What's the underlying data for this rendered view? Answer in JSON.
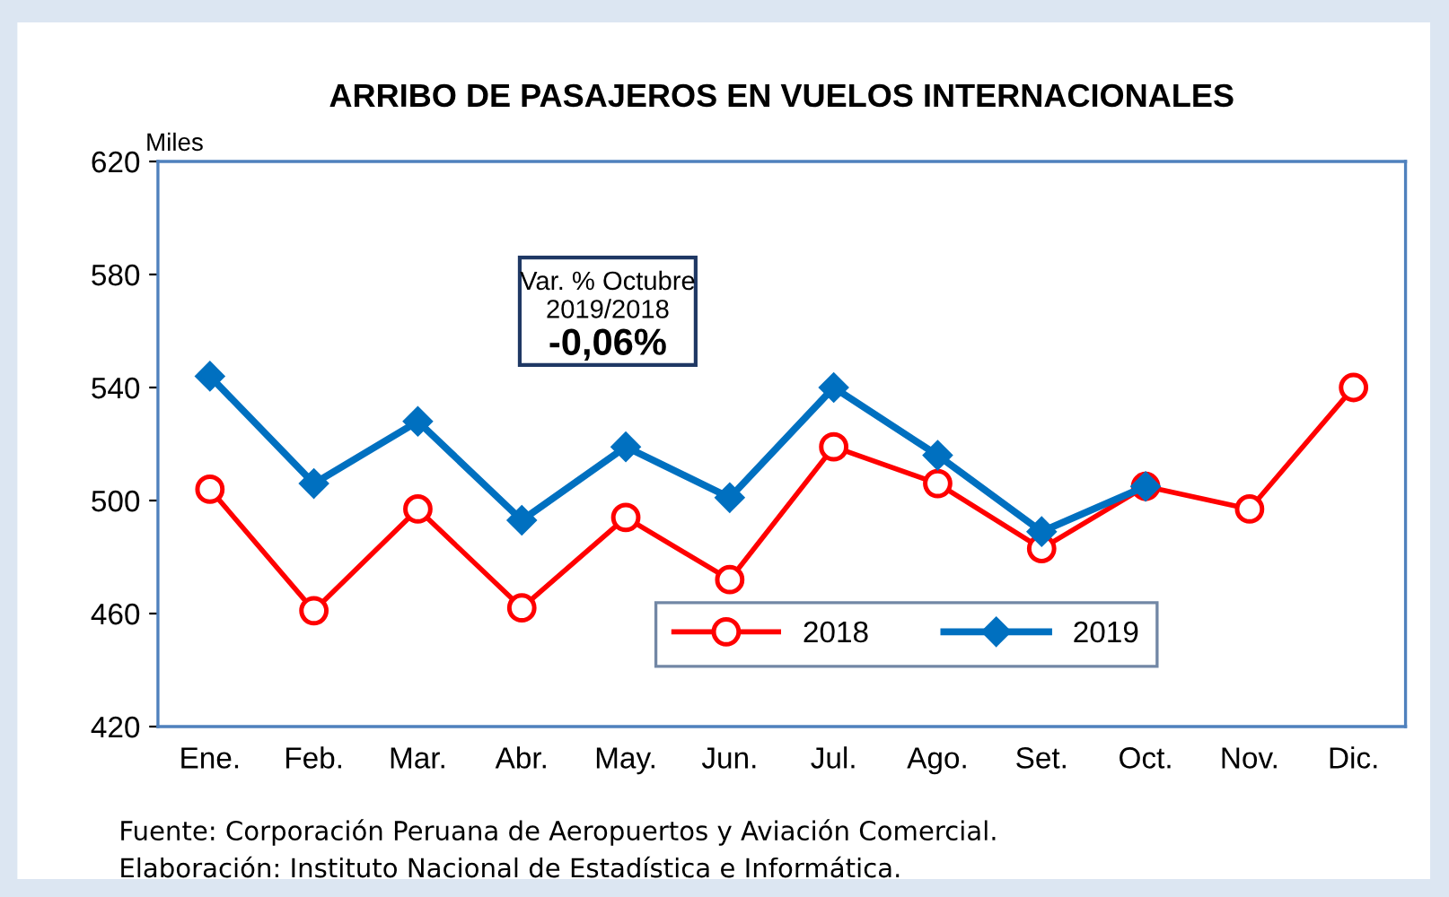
{
  "chart_data": {
    "type": "line",
    "title": "ARRIBO DE PASAJEROS EN VUELOS INTERNACIONALES",
    "ylabel": "Miles",
    "categories": [
      "Ene.",
      "Feb.",
      "Mar.",
      "Abr.",
      "May.",
      "Jun.",
      "Jul.",
      "Ago.",
      "Set.",
      "Oct.",
      "Nov.",
      "Dic."
    ],
    "series": [
      {
        "name": "2018",
        "color": "#ff0000",
        "marker": "circle",
        "values": [
          504,
          461,
          497,
          462,
          494,
          472,
          519,
          506,
          483,
          505,
          497,
          540
        ]
      },
      {
        "name": "2019",
        "color": "#0070c0",
        "marker": "diamond",
        "values": [
          544,
          506,
          528,
          493,
          519,
          501,
          540,
          516,
          489,
          505,
          null,
          null
        ]
      }
    ],
    "ylim": [
      420,
      620
    ],
    "yticks": [
      420,
      460,
      500,
      540,
      580,
      620
    ],
    "grid": false,
    "legend": "bottom",
    "annotations": [
      "Var. % Octubre",
      "2019/2018",
      "-0,06%",
      "Fuente: Corporación Peruana de Aeropuertos y Aviación Comercial.",
      "Elaboración: Instituto Nacional de Estadística e Informática."
    ]
  }
}
